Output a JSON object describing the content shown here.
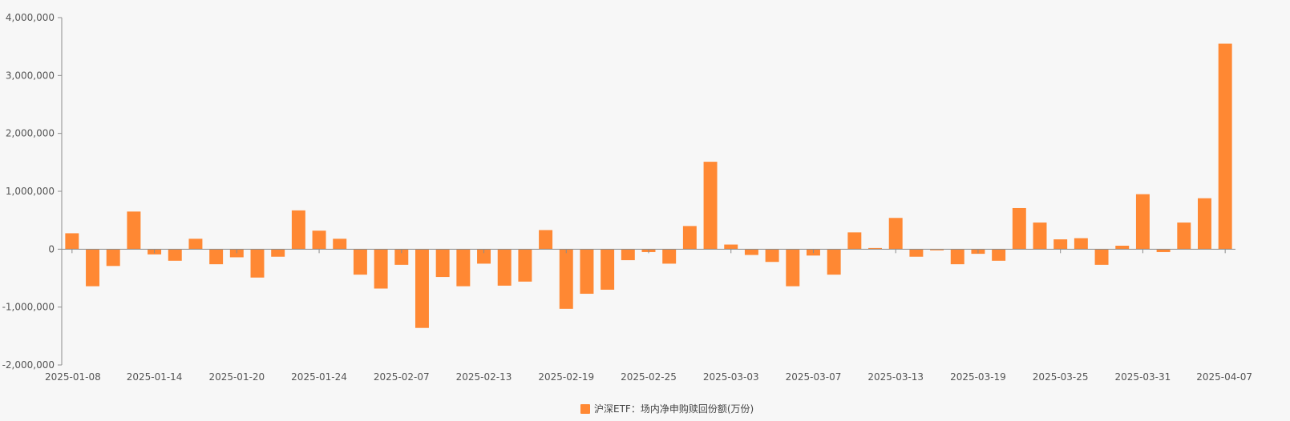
{
  "chart_data": {
    "type": "bar",
    "ylim": [
      -2000000,
      4000000
    ],
    "yticks": [
      -2000000,
      -1000000,
      0,
      1000000,
      2000000,
      3000000,
      4000000
    ],
    "ytick_labels": [
      "-2,000,000",
      "-1,000,000",
      "0",
      "1,000,000",
      "2,000,000",
      "3,000,000",
      "4,000,000"
    ],
    "xtick_labels": [
      {
        "index": 0,
        "label": "2025-01-08"
      },
      {
        "index": 4,
        "label": "2025-01-14"
      },
      {
        "index": 8,
        "label": "2025-01-20"
      },
      {
        "index": 12,
        "label": "2025-01-24"
      },
      {
        "index": 16,
        "label": "2025-02-07"
      },
      {
        "index": 20,
        "label": "2025-02-13"
      },
      {
        "index": 24,
        "label": "2025-02-19"
      },
      {
        "index": 28,
        "label": "2025-02-25"
      },
      {
        "index": 32,
        "label": "2025-03-03"
      },
      {
        "index": 36,
        "label": "2025-03-07"
      },
      {
        "index": 40,
        "label": "2025-03-13"
      },
      {
        "index": 44,
        "label": "2025-03-19"
      },
      {
        "index": 48,
        "label": "2025-03-25"
      },
      {
        "index": 52,
        "label": "2025-03-31"
      },
      {
        "index": 56,
        "label": "2025-04-07"
      }
    ],
    "grid": false,
    "legend_position": "bottom-center",
    "series": [
      {
        "name": "沪深ETF：场内净申购赎回份额(万份)",
        "color": "#ff8833",
        "values": [
          275000,
          -640000,
          -290000,
          650000,
          -90000,
          -200000,
          180000,
          -260000,
          -140000,
          -490000,
          -130000,
          670000,
          320000,
          180000,
          -440000,
          -680000,
          -270000,
          -1360000,
          -480000,
          -640000,
          -250000,
          -630000,
          -560000,
          330000,
          -1030000,
          -770000,
          -700000,
          -190000,
          -50000,
          -250000,
          400000,
          1510000,
          80000,
          -100000,
          -220000,
          -640000,
          -110000,
          -440000,
          290000,
          20000,
          540000,
          -130000,
          -20000,
          -260000,
          -80000,
          -200000,
          710000,
          460000,
          170000,
          190000,
          -270000,
          60000,
          950000,
          -50000,
          460000,
          880000,
          3550000
        ]
      }
    ]
  }
}
